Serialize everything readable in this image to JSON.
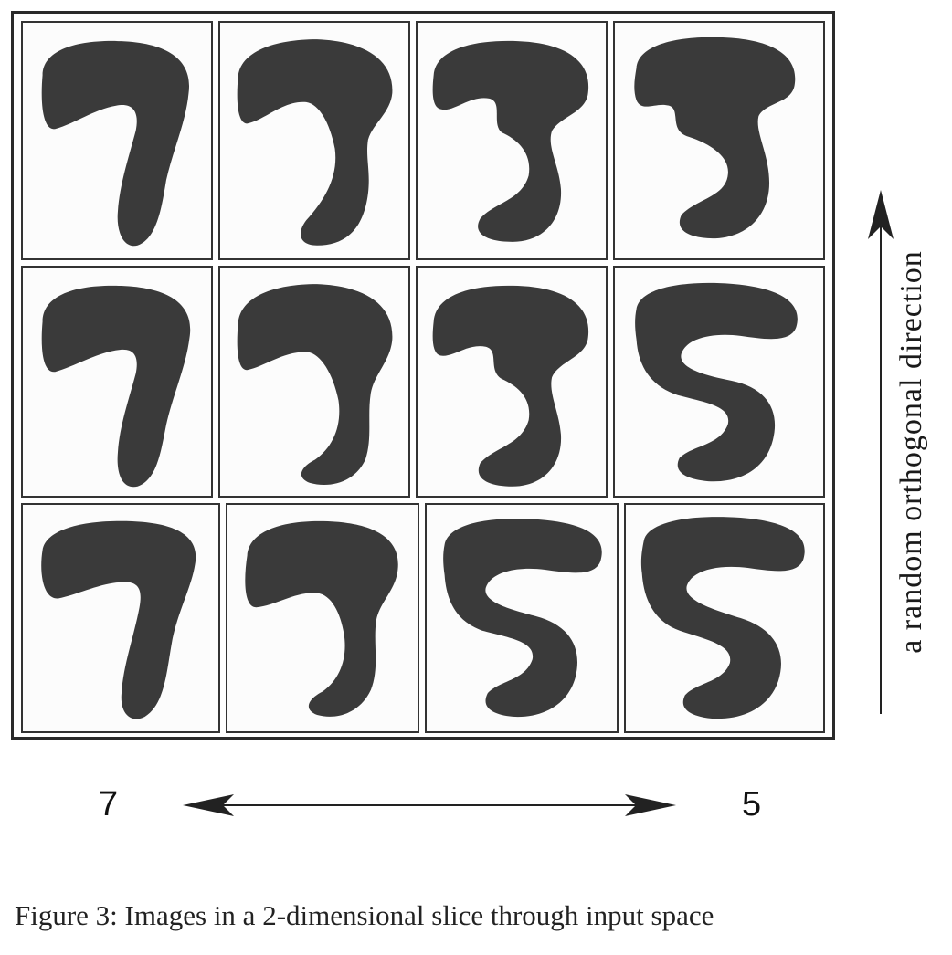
{
  "figure": {
    "caption": "Figure 3: Images in a 2-dimensional slice through input space",
    "horizontal_axis": {
      "left_label": "7",
      "right_label": "5"
    },
    "vertical_axis": {
      "label": "a random orthogonal direction"
    },
    "grid": {
      "rows": 3,
      "cols": 4
    },
    "ink_color": "#3a3a3a"
  }
}
